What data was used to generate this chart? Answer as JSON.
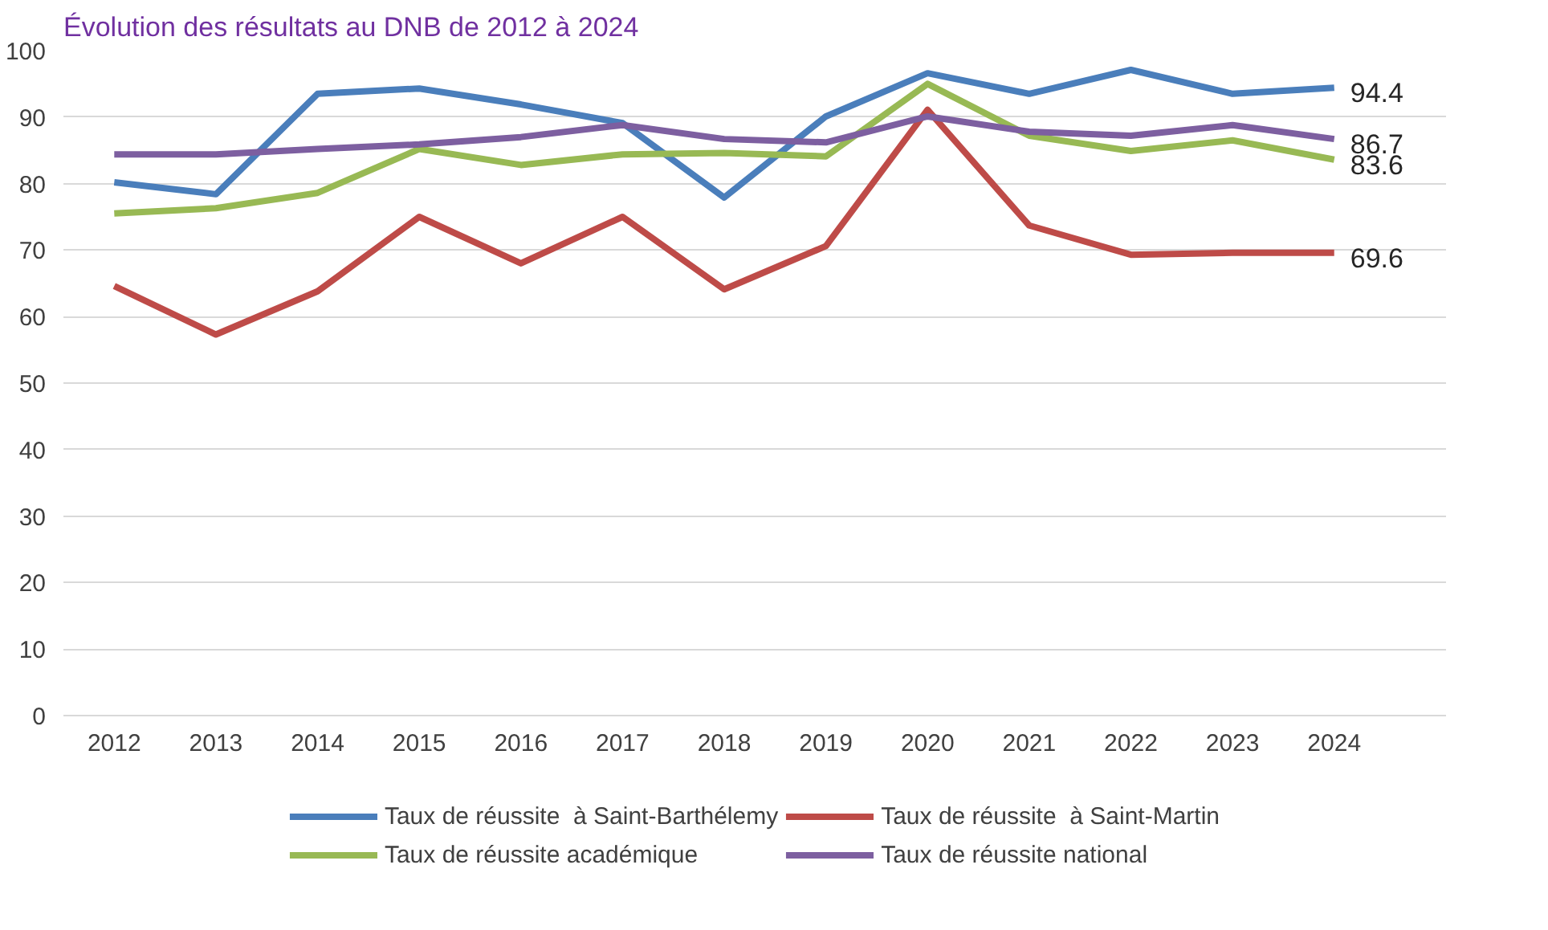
{
  "chart_data": {
    "type": "line",
    "title": "Évolution des résultats au DNB de 2012 à 2024",
    "categories": [
      "2012",
      "2013",
      "2014",
      "2015",
      "2016",
      "2017",
      "2018",
      "2019",
      "2020",
      "2021",
      "2022",
      "2023",
      "2024"
    ],
    "series": [
      {
        "name": "Taux de réussite  à Saint-Barthélemy",
        "color": "#4a7ebb",
        "values": [
          80.2,
          78.4,
          93.5,
          94.3,
          91.9,
          89.1,
          77.9,
          90.1,
          96.6,
          93.5,
          97.1,
          93.5,
          94.4
        ],
        "value_labels": [
          null,
          null,
          null,
          null,
          null,
          null,
          null,
          null,
          null,
          null,
          null,
          null,
          "94.4"
        ]
      },
      {
        "name": "Taux de réussite  à Saint-Martin",
        "color": "#be4b48",
        "values": [
          64.6,
          57.3,
          63.8,
          75.0,
          68.0,
          75.0,
          64.1,
          70.6,
          91.1,
          73.7,
          69.3,
          69.6,
          69.6
        ],
        "value_labels": [
          null,
          null,
          null,
          null,
          null,
          null,
          null,
          null,
          null,
          null,
          null,
          null,
          "69.6"
        ]
      },
      {
        "name": "Taux de réussite académique",
        "color": "#98b954",
        "values": [
          75.5,
          76.3,
          78.6,
          85.2,
          82.8,
          84.4,
          84.6,
          84.1,
          95.0,
          87.2,
          84.9,
          86.5,
          83.6
        ],
        "value_labels": [
          null,
          null,
          null,
          null,
          null,
          null,
          null,
          null,
          null,
          null,
          null,
          null,
          "83.6"
        ]
      },
      {
        "name": "Taux de réussite national",
        "color": "#7d5fa0",
        "values": [
          84.4,
          84.4,
          85.2,
          85.9,
          87.0,
          88.8,
          86.7,
          86.2,
          90.1,
          87.8,
          87.2,
          88.8,
          86.7
        ],
        "value_labels": [
          null,
          null,
          null,
          null,
          null,
          null,
          null,
          null,
          null,
          null,
          null,
          null,
          "86.7"
        ]
      }
    ],
    "ylim": [
      0,
      100
    ],
    "yticks": [
      0,
      10,
      20,
      30,
      40,
      50,
      60,
      70,
      80,
      90,
      100
    ],
    "grid": "y",
    "legend": "bottom",
    "line_style": "solid",
    "marker": "none"
  }
}
